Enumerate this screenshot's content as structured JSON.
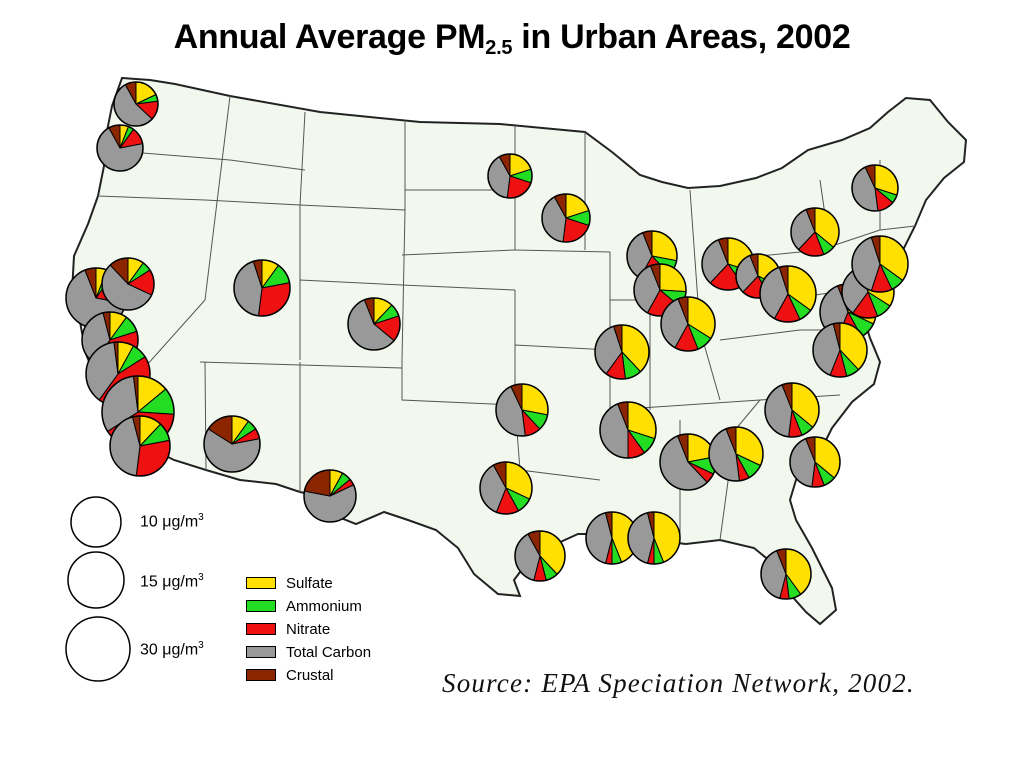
{
  "title": {
    "prefix": "Annual Average PM",
    "subscript": "2.5",
    "suffix": " in Urban Areas, 2002"
  },
  "source": "Source: EPA Speciation Network, 2002.",
  "size_legend": [
    {
      "value": "10",
      "unit_prefix": "μg/m",
      "unit_exp": "3"
    },
    {
      "value": "15",
      "unit_prefix": "μg/m",
      "unit_exp": "3"
    },
    {
      "value": "30",
      "unit_prefix": "μg/m",
      "unit_exp": "3"
    }
  ],
  "components": [
    {
      "name": "Sulfate",
      "color": "#ffe000"
    },
    {
      "name": "Ammonium",
      "color": "#22dd22"
    },
    {
      "name": "Nitrate",
      "color": "#ee1111"
    },
    {
      "name": "Total Carbon",
      "color": "#999999"
    },
    {
      "name": "Crustal",
      "color": "#8b2500"
    }
  ],
  "colors": {
    "land": "#f2f8ee",
    "border": "#222222",
    "state_line": "#555555"
  }
}
